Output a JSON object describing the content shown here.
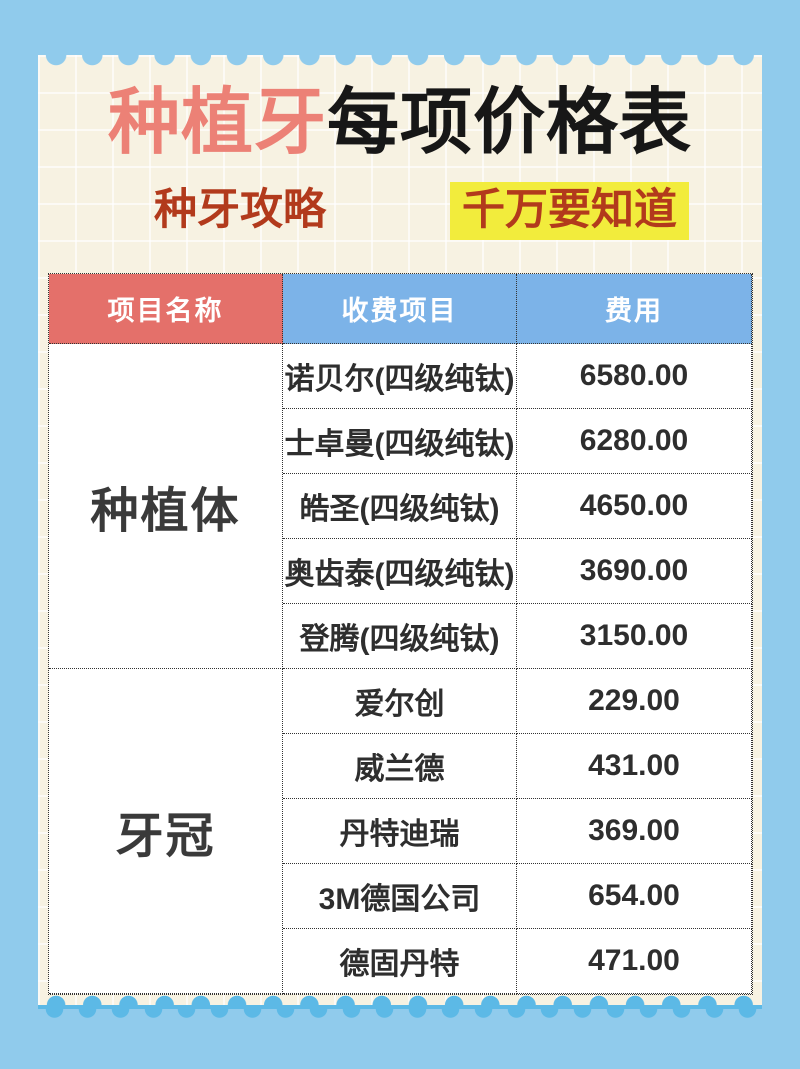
{
  "poster": {
    "title_highlight": "种植牙",
    "title_rest": "每项价格表",
    "subtitle_left": "种牙攻略",
    "subtitle_right": "千万要知道"
  },
  "table": {
    "columns": [
      {
        "label": "项目名称"
      },
      {
        "label": "收费项目"
      },
      {
        "label": "费用"
      }
    ],
    "groups": [
      {
        "label": "种植体",
        "row_span": 5
      },
      {
        "label": "牙冠",
        "row_span": 5
      }
    ],
    "rows": [
      {
        "group": "种植体",
        "item": "诺贝尔(四级纯钛)",
        "price": "6580.00"
      },
      {
        "group": "种植体",
        "item": "士卓曼(四级纯钛)",
        "price": "6280.00"
      },
      {
        "group": "种植体",
        "item": "皓圣(四级纯钛)",
        "price": "4650.00"
      },
      {
        "group": "种植体",
        "item": "奥齿泰(四级纯钛)",
        "price": "3690.00"
      },
      {
        "group": "种植体",
        "item": "登腾(四级纯钛)",
        "price": "3150.00"
      },
      {
        "group": "牙冠",
        "item": "爱尔创",
        "price": "229.00"
      },
      {
        "group": "牙冠",
        "item": "威兰德",
        "price": "431.00"
      },
      {
        "group": "牙冠",
        "item": "丹特迪瑞",
        "price": "369.00"
      },
      {
        "group": "牙冠",
        "item": "3M德国公司",
        "price": "654.00"
      },
      {
        "group": "牙冠",
        "item": "德固丹特",
        "price": "471.00"
      }
    ]
  },
  "colors": {
    "background": "#90cbec",
    "ribbon": "#5cb9e6",
    "paper": "#f7f2e2",
    "cell_background": "#ffffff",
    "table_border": "#333333",
    "header_col1_bg": "#e4706a",
    "header_col23_bg": "#7cb3e8",
    "header_text": "#ffffff",
    "title_highlight_color": "#ec8176",
    "title_text_color": "#171717",
    "subtitle_color": "#b23a1c",
    "subtitle_highlight_bg": "#f2ec3c",
    "cell_text": "#2e2e2e"
  }
}
